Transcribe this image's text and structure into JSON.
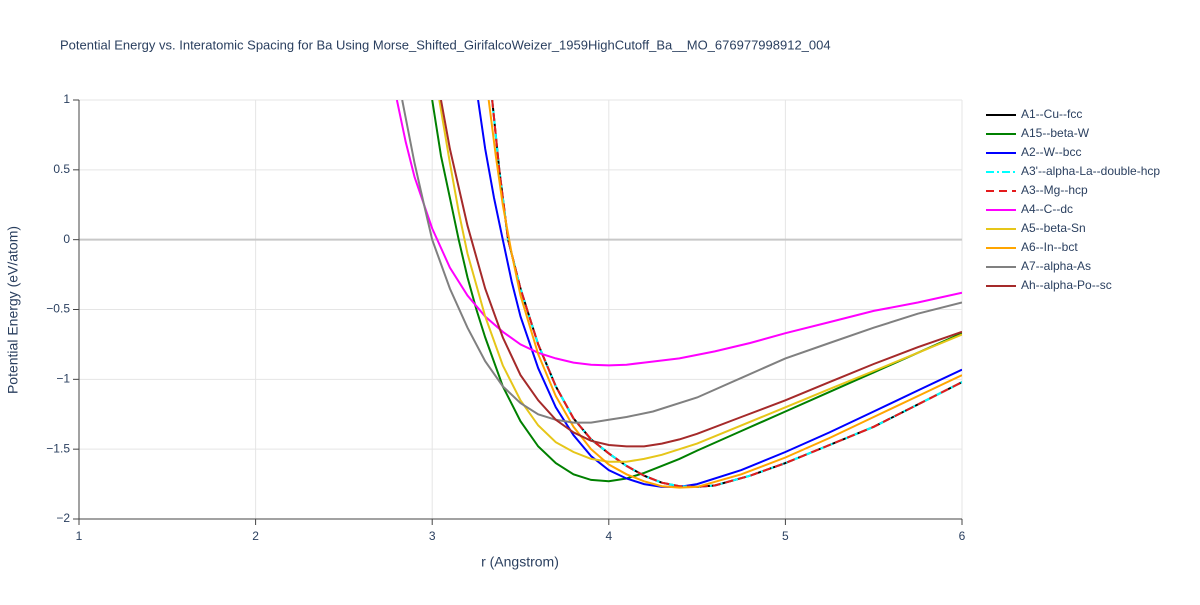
{
  "chart_data": {
    "type": "line",
    "title": "Potential Energy vs. Interatomic Spacing for Ba Using Morse_Shifted_GirifalcoWeizer_1959HighCutoff_Ba__MO_676977998912_004",
    "x_label": "r (Angstrom)",
    "y_label": "Potential Energy (eV/atom)",
    "xlim": [
      1,
      6
    ],
    "ylim": [
      -2,
      1
    ],
    "xticks": [
      1,
      2,
      3,
      4,
      5,
      6
    ],
    "yticks": [
      {
        "value": -2,
        "label": "−2"
      },
      {
        "value": -1.5,
        "label": "−1.5"
      },
      {
        "value": -1,
        "label": "−1"
      },
      {
        "value": -0.5,
        "label": "−0.5"
      },
      0,
      0.5,
      1
    ],
    "grid": true,
    "legend": "right",
    "series": [
      {
        "name": "A1--Cu--fcc",
        "color": "#000000",
        "dash": "solid",
        "x": [
          3.34,
          3.38,
          3.43,
          3.5,
          3.55,
          3.6,
          3.7,
          3.8,
          3.9,
          4.0,
          4.1,
          4.2,
          4.3,
          4.4,
          4.5,
          4.6,
          4.8,
          5.0,
          5.25,
          5.5,
          5.75,
          6.0
        ],
        "values": [
          1,
          0.5,
          0,
          -0.35,
          -0.55,
          -0.75,
          -1.05,
          -1.28,
          -1.43,
          -1.53,
          -1.62,
          -1.69,
          -1.74,
          -1.765,
          -1.77,
          -1.76,
          -1.69,
          -1.6,
          -1.47,
          -1.34,
          -1.18,
          -1.02
        ]
      },
      {
        "name": "A15--beta-W",
        "color": "#008000",
        "dash": "solid",
        "x": [
          3.0,
          3.05,
          3.1,
          3.15,
          3.2,
          3.25,
          3.3,
          3.4,
          3.5,
          3.6,
          3.7,
          3.8,
          3.9,
          4.0,
          4.1,
          4.2,
          4.3,
          4.4,
          4.5,
          4.75,
          5.0,
          5.25,
          5.5,
          5.75,
          6.0
        ],
        "values": [
          1,
          0.6,
          0.3,
          0,
          -0.27,
          -0.5,
          -0.7,
          -1.05,
          -1.3,
          -1.48,
          -1.6,
          -1.68,
          -1.72,
          -1.73,
          -1.71,
          -1.67,
          -1.62,
          -1.57,
          -1.51,
          -1.37,
          -1.23,
          -1.09,
          -0.95,
          -0.81,
          -0.67
        ]
      },
      {
        "name": "A2--W--bcc",
        "color": "#0000ff",
        "dash": "solid",
        "x": [
          3.26,
          3.3,
          3.35,
          3.4,
          3.45,
          3.5,
          3.6,
          3.7,
          3.8,
          3.9,
          4.0,
          4.1,
          4.2,
          4.3,
          4.4,
          4.5,
          4.75,
          5.0,
          5.25,
          5.5,
          5.75,
          6.0
        ],
        "values": [
          1,
          0.65,
          0.3,
          0,
          -0.3,
          -0.55,
          -0.92,
          -1.2,
          -1.4,
          -1.55,
          -1.65,
          -1.71,
          -1.75,
          -1.77,
          -1.77,
          -1.75,
          -1.65,
          -1.52,
          -1.38,
          -1.23,
          -1.08,
          -0.93
        ]
      },
      {
        "name": "A3'--alpha-La--double-hcp",
        "color": "#00ffff",
        "dash": "dashdot",
        "x": [
          3.34,
          3.38,
          3.43,
          3.5,
          3.55,
          3.6,
          3.7,
          3.8,
          3.9,
          4.0,
          4.1,
          4.2,
          4.3,
          4.4,
          4.5,
          4.6,
          4.8,
          5.0,
          5.25,
          5.5,
          5.75,
          6.0
        ],
        "values": [
          1,
          0.5,
          0,
          -0.35,
          -0.55,
          -0.75,
          -1.05,
          -1.28,
          -1.43,
          -1.53,
          -1.62,
          -1.69,
          -1.74,
          -1.765,
          -1.77,
          -1.76,
          -1.69,
          -1.6,
          -1.47,
          -1.34,
          -1.18,
          -1.02
        ]
      },
      {
        "name": "A3--Mg--hcp",
        "color": "#e41a1c",
        "dash": "dash",
        "x": [
          3.34,
          3.38,
          3.43,
          3.5,
          3.55,
          3.6,
          3.7,
          3.8,
          3.9,
          4.0,
          4.1,
          4.2,
          4.3,
          4.4,
          4.5,
          4.6,
          4.8,
          5.0,
          5.25,
          5.5,
          5.75,
          6.0
        ],
        "values": [
          1,
          0.5,
          0,
          -0.35,
          -0.55,
          -0.75,
          -1.05,
          -1.28,
          -1.43,
          -1.53,
          -1.62,
          -1.69,
          -1.74,
          -1.765,
          -1.77,
          -1.76,
          -1.69,
          -1.6,
          -1.47,
          -1.34,
          -1.18,
          -1.02
        ]
      },
      {
        "name": "A4--C--dc",
        "color": "#ff00ff",
        "dash": "solid",
        "x": [
          2.8,
          2.85,
          2.9,
          3.0,
          3.1,
          3.2,
          3.3,
          3.4,
          3.5,
          3.6,
          3.7,
          3.8,
          3.9,
          4.0,
          4.1,
          4.2,
          4.4,
          4.6,
          4.8,
          5.0,
          5.25,
          5.5,
          5.75,
          6.0
        ],
        "values": [
          1,
          0.7,
          0.45,
          0.08,
          -0.2,
          -0.4,
          -0.55,
          -0.66,
          -0.75,
          -0.81,
          -0.85,
          -0.88,
          -0.895,
          -0.9,
          -0.895,
          -0.88,
          -0.85,
          -0.8,
          -0.74,
          -0.67,
          -0.59,
          -0.51,
          -0.45,
          -0.38
        ]
      },
      {
        "name": "A5--beta-Sn",
        "color": "#e6c619",
        "dash": "solid",
        "x": [
          3.04,
          3.1,
          3.15,
          3.2,
          3.3,
          3.4,
          3.5,
          3.6,
          3.7,
          3.8,
          3.9,
          4.0,
          4.1,
          4.2,
          4.3,
          4.5,
          4.75,
          5.0,
          5.25,
          5.5,
          5.75,
          6.0
        ],
        "values": [
          1,
          0.55,
          0.2,
          -0.1,
          -0.55,
          -0.9,
          -1.15,
          -1.33,
          -1.45,
          -1.52,
          -1.57,
          -1.59,
          -1.59,
          -1.57,
          -1.54,
          -1.46,
          -1.33,
          -1.2,
          -1.07,
          -0.94,
          -0.81,
          -0.68
        ]
      },
      {
        "name": "A6--In--bct",
        "color": "#ffa500",
        "dash": "solid",
        "x": [
          3.32,
          3.36,
          3.4,
          3.45,
          3.5,
          3.6,
          3.7,
          3.8,
          3.9,
          4.0,
          4.1,
          4.2,
          4.3,
          4.4,
          4.5,
          4.75,
          5.0,
          5.25,
          5.5,
          5.75,
          6.0
        ],
        "values": [
          1,
          0.6,
          0.25,
          -0.1,
          -0.4,
          -0.82,
          -1.12,
          -1.34,
          -1.5,
          -1.61,
          -1.68,
          -1.73,
          -1.765,
          -1.775,
          -1.77,
          -1.68,
          -1.56,
          -1.42,
          -1.27,
          -1.12,
          -0.97
        ]
      },
      {
        "name": "A7--alpha-As",
        "color": "#808080",
        "dash": "solid",
        "x": [
          2.83,
          2.9,
          2.95,
          3.0,
          3.1,
          3.2,
          3.3,
          3.4,
          3.5,
          3.6,
          3.7,
          3.8,
          3.9,
          4.0,
          4.1,
          4.25,
          4.5,
          4.75,
          5.0,
          5.25,
          5.5,
          5.75,
          6.0
        ],
        "values": [
          1,
          0.55,
          0.27,
          0,
          -0.35,
          -0.63,
          -0.87,
          -1.05,
          -1.17,
          -1.25,
          -1.29,
          -1.31,
          -1.31,
          -1.29,
          -1.27,
          -1.23,
          -1.13,
          -0.99,
          -0.85,
          -0.74,
          -0.63,
          -0.53,
          -0.45
        ]
      },
      {
        "name": "Ah--alpha-Po--sc",
        "color": "#a52a2a",
        "dash": "solid",
        "x": [
          3.05,
          3.1,
          3.2,
          3.3,
          3.4,
          3.5,
          3.6,
          3.7,
          3.8,
          3.9,
          4.0,
          4.1,
          4.2,
          4.3,
          4.4,
          4.5,
          4.75,
          5.0,
          5.25,
          5.5,
          5.75,
          6.0
        ],
        "values": [
          1,
          0.65,
          0.1,
          -0.35,
          -0.7,
          -0.97,
          -1.15,
          -1.29,
          -1.38,
          -1.44,
          -1.47,
          -1.48,
          -1.48,
          -1.46,
          -1.43,
          -1.39,
          -1.27,
          -1.15,
          -1.02,
          -0.89,
          -0.77,
          -0.66
        ]
      }
    ]
  }
}
